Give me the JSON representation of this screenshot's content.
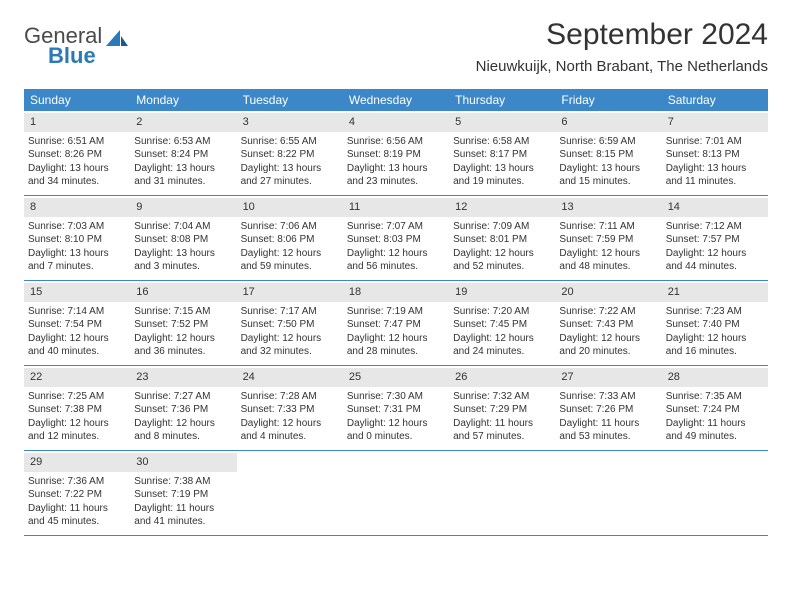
{
  "logo": {
    "line1": "General",
    "line2": "Blue"
  },
  "title": "September 2024",
  "location": "Nieuwkuijk, North Brabant, The Netherlands",
  "colors": {
    "header_bg": "#3b87c8",
    "header_text": "#ffffff",
    "band_bg": "#e7e7e7",
    "rule": "#3b87c8",
    "body_text": "#333333",
    "logo_gray": "#4a4a4a",
    "logo_blue": "#2a7ab8",
    "page_bg": "#ffffff"
  },
  "weekdays": [
    "Sunday",
    "Monday",
    "Tuesday",
    "Wednesday",
    "Thursday",
    "Friday",
    "Saturday"
  ],
  "weeks": [
    [
      {
        "n": "1",
        "sr": "Sunrise: 6:51 AM",
        "ss": "Sunset: 8:26 PM",
        "dl": "Daylight: 13 hours and 34 minutes."
      },
      {
        "n": "2",
        "sr": "Sunrise: 6:53 AM",
        "ss": "Sunset: 8:24 PM",
        "dl": "Daylight: 13 hours and 31 minutes."
      },
      {
        "n": "3",
        "sr": "Sunrise: 6:55 AM",
        "ss": "Sunset: 8:22 PM",
        "dl": "Daylight: 13 hours and 27 minutes."
      },
      {
        "n": "4",
        "sr": "Sunrise: 6:56 AM",
        "ss": "Sunset: 8:19 PM",
        "dl": "Daylight: 13 hours and 23 minutes."
      },
      {
        "n": "5",
        "sr": "Sunrise: 6:58 AM",
        "ss": "Sunset: 8:17 PM",
        "dl": "Daylight: 13 hours and 19 minutes."
      },
      {
        "n": "6",
        "sr": "Sunrise: 6:59 AM",
        "ss": "Sunset: 8:15 PM",
        "dl": "Daylight: 13 hours and 15 minutes."
      },
      {
        "n": "7",
        "sr": "Sunrise: 7:01 AM",
        "ss": "Sunset: 8:13 PM",
        "dl": "Daylight: 13 hours and 11 minutes."
      }
    ],
    [
      {
        "n": "8",
        "sr": "Sunrise: 7:03 AM",
        "ss": "Sunset: 8:10 PM",
        "dl": "Daylight: 13 hours and 7 minutes."
      },
      {
        "n": "9",
        "sr": "Sunrise: 7:04 AM",
        "ss": "Sunset: 8:08 PM",
        "dl": "Daylight: 13 hours and 3 minutes."
      },
      {
        "n": "10",
        "sr": "Sunrise: 7:06 AM",
        "ss": "Sunset: 8:06 PM",
        "dl": "Daylight: 12 hours and 59 minutes."
      },
      {
        "n": "11",
        "sr": "Sunrise: 7:07 AM",
        "ss": "Sunset: 8:03 PM",
        "dl": "Daylight: 12 hours and 56 minutes."
      },
      {
        "n": "12",
        "sr": "Sunrise: 7:09 AM",
        "ss": "Sunset: 8:01 PM",
        "dl": "Daylight: 12 hours and 52 minutes."
      },
      {
        "n": "13",
        "sr": "Sunrise: 7:11 AM",
        "ss": "Sunset: 7:59 PM",
        "dl": "Daylight: 12 hours and 48 minutes."
      },
      {
        "n": "14",
        "sr": "Sunrise: 7:12 AM",
        "ss": "Sunset: 7:57 PM",
        "dl": "Daylight: 12 hours and 44 minutes."
      }
    ],
    [
      {
        "n": "15",
        "sr": "Sunrise: 7:14 AM",
        "ss": "Sunset: 7:54 PM",
        "dl": "Daylight: 12 hours and 40 minutes."
      },
      {
        "n": "16",
        "sr": "Sunrise: 7:15 AM",
        "ss": "Sunset: 7:52 PM",
        "dl": "Daylight: 12 hours and 36 minutes."
      },
      {
        "n": "17",
        "sr": "Sunrise: 7:17 AM",
        "ss": "Sunset: 7:50 PM",
        "dl": "Daylight: 12 hours and 32 minutes."
      },
      {
        "n": "18",
        "sr": "Sunrise: 7:19 AM",
        "ss": "Sunset: 7:47 PM",
        "dl": "Daylight: 12 hours and 28 minutes."
      },
      {
        "n": "19",
        "sr": "Sunrise: 7:20 AM",
        "ss": "Sunset: 7:45 PM",
        "dl": "Daylight: 12 hours and 24 minutes."
      },
      {
        "n": "20",
        "sr": "Sunrise: 7:22 AM",
        "ss": "Sunset: 7:43 PM",
        "dl": "Daylight: 12 hours and 20 minutes."
      },
      {
        "n": "21",
        "sr": "Sunrise: 7:23 AM",
        "ss": "Sunset: 7:40 PM",
        "dl": "Daylight: 12 hours and 16 minutes."
      }
    ],
    [
      {
        "n": "22",
        "sr": "Sunrise: 7:25 AM",
        "ss": "Sunset: 7:38 PM",
        "dl": "Daylight: 12 hours and 12 minutes."
      },
      {
        "n": "23",
        "sr": "Sunrise: 7:27 AM",
        "ss": "Sunset: 7:36 PM",
        "dl": "Daylight: 12 hours and 8 minutes."
      },
      {
        "n": "24",
        "sr": "Sunrise: 7:28 AM",
        "ss": "Sunset: 7:33 PM",
        "dl": "Daylight: 12 hours and 4 minutes."
      },
      {
        "n": "25",
        "sr": "Sunrise: 7:30 AM",
        "ss": "Sunset: 7:31 PM",
        "dl": "Daylight: 12 hours and 0 minutes."
      },
      {
        "n": "26",
        "sr": "Sunrise: 7:32 AM",
        "ss": "Sunset: 7:29 PM",
        "dl": "Daylight: 11 hours and 57 minutes."
      },
      {
        "n": "27",
        "sr": "Sunrise: 7:33 AM",
        "ss": "Sunset: 7:26 PM",
        "dl": "Daylight: 11 hours and 53 minutes."
      },
      {
        "n": "28",
        "sr": "Sunrise: 7:35 AM",
        "ss": "Sunset: 7:24 PM",
        "dl": "Daylight: 11 hours and 49 minutes."
      }
    ],
    [
      {
        "n": "29",
        "sr": "Sunrise: 7:36 AM",
        "ss": "Sunset: 7:22 PM",
        "dl": "Daylight: 11 hours and 45 minutes."
      },
      {
        "n": "30",
        "sr": "Sunrise: 7:38 AM",
        "ss": "Sunset: 7:19 PM",
        "dl": "Daylight: 11 hours and 41 minutes."
      },
      null,
      null,
      null,
      null,
      null
    ]
  ]
}
